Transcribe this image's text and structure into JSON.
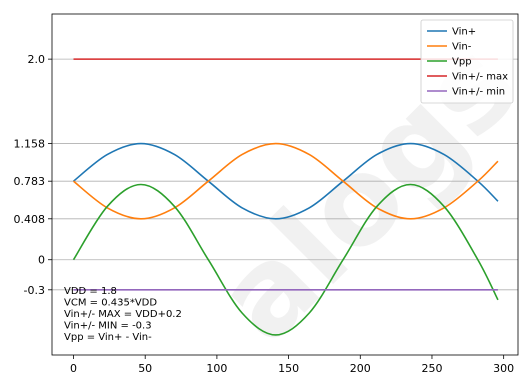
{
  "chart_data": {
    "type": "line",
    "title": "",
    "xlabel": "",
    "ylabel": "",
    "xlim": [
      -15,
      310
    ],
    "ylim": [
      -0.95,
      2.45
    ],
    "xticks": [
      0,
      50,
      100,
      150,
      200,
      250,
      300
    ],
    "xtick_labels": [
      "0",
      "50",
      "100",
      "150",
      "200",
      "250",
      "300"
    ],
    "yticks": [
      2.0,
      1.158,
      0.783,
      0.408,
      0,
      -0.3
    ],
    "ytick_labels": [
      "2.0",
      "1.158",
      "0.783",
      "0.408",
      "0",
      "-0.3"
    ],
    "grid": "horizontal",
    "legend_position": "top-right",
    "x": [
      0,
      23.5,
      47,
      70.5,
      94,
      117.5,
      141,
      164.5,
      188,
      211.5,
      235,
      258.5,
      282,
      296
    ],
    "series": [
      {
        "name": "Vin+",
        "color": "#1f77b4",
        "values": [
          0.783,
          1.048,
          1.158,
          1.048,
          0.783,
          0.518,
          0.408,
          0.518,
          0.783,
          1.048,
          1.158,
          1.048,
          0.783,
          0.583
        ]
      },
      {
        "name": "Vin-",
        "color": "#ff7f0e",
        "values": [
          0.783,
          0.518,
          0.408,
          0.518,
          0.783,
          1.048,
          1.158,
          1.048,
          0.783,
          0.518,
          0.408,
          0.518,
          0.783,
          0.983
        ]
      },
      {
        "name": "Vpp",
        "color": "#2ca02c",
        "values": [
          0,
          0.53,
          0.75,
          0.53,
          0,
          -0.53,
          -0.75,
          -0.53,
          0,
          0.53,
          0.75,
          0.53,
          0,
          -0.4
        ]
      },
      {
        "name": "Vin+/- max",
        "color": "#d62728",
        "values": [
          2.0,
          2.0,
          2.0,
          2.0,
          2.0,
          2.0,
          2.0,
          2.0,
          2.0,
          2.0,
          2.0,
          2.0,
          2.0,
          2.0
        ]
      },
      {
        "name": "Vin+/- min",
        "color": "#9467bd",
        "values": [
          -0.3,
          -0.3,
          -0.3,
          -0.3,
          -0.3,
          -0.3,
          -0.3,
          -0.3,
          -0.3,
          -0.3,
          -0.3,
          -0.3,
          -0.3,
          -0.3
        ]
      }
    ],
    "annotations": [
      "VDD = 1.8",
      "VCM = 0.435*VDD",
      "Vin+/- MAX = VDD+0.2",
      "Vin+/- MIN = -0.3",
      "Vpp = Vin+ - Vin-"
    ],
    "watermark": "alogs"
  }
}
